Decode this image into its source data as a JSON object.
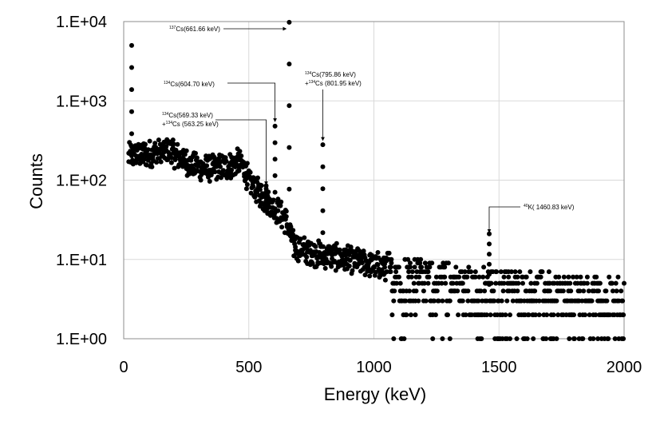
{
  "chart_data": {
    "type": "scatter",
    "title": "",
    "xlabel": "Energy (keV)",
    "ylabel": "Counts",
    "xlim": [
      0,
      2000
    ],
    "ylim": [
      1,
      10000
    ],
    "y_scale": "log",
    "grid": true,
    "x_ticks": [
      "0",
      "500",
      "1000",
      "1500",
      "2000"
    ],
    "y_ticks": [
      "1.E+00",
      "1.E+01",
      "1.E+02",
      "1.E+03",
      "1.E+04"
    ],
    "marker_color": "#000000",
    "annotations": [
      {
        "sup": "137",
        "text": "Cs(661.66 keV)",
        "x": 661.66,
        "y": 9500
      },
      {
        "sup": "134",
        "text": "Cs(604.70 keV)",
        "x": 604.7,
        "y": 500
      },
      {
        "sup": "134",
        "text": "Cs(569.33 keV)",
        "sup2": "134",
        "text2_prefix": "+",
        "text2": "Cs (563.25 keV)",
        "x": 569.33,
        "y": 80
      },
      {
        "sup": "134",
        "text": "Cs(795.86 keV)",
        "sup2": "134",
        "text2_prefix": "+",
        "text2": "Cs (801.95 keV)",
        "x": 795.86,
        "y": 290
      },
      {
        "sup": "40",
        "text": "K( 1460.83 keV)",
        "x": 1460.83,
        "y": 20
      }
    ],
    "peaks": [
      {
        "x": 32,
        "y": 5000
      },
      {
        "x": 661.66,
        "y": 9800
      },
      {
        "x": 604.7,
        "y": 480
      },
      {
        "x": 569.33,
        "y": 85
      },
      {
        "x": 795.86,
        "y": 280
      },
      {
        "x": 1460.83,
        "y": 21
      }
    ],
    "spectrum_profile": [
      [
        20,
        200
      ],
      [
        60,
        210
      ],
      [
        120,
        220
      ],
      [
        180,
        230
      ],
      [
        230,
        190
      ],
      [
        280,
        150
      ],
      [
        350,
        140
      ],
      [
        420,
        150
      ],
      [
        460,
        170
      ],
      [
        480,
        140
      ],
      [
        500,
        100
      ],
      [
        540,
        70
      ],
      [
        580,
        50
      ],
      [
        620,
        40
      ],
      [
        650,
        30
      ],
      [
        680,
        15
      ],
      [
        760,
        12
      ],
      [
        900,
        10
      ],
      [
        1050,
        8
      ],
      [
        1200,
        6
      ],
      [
        1400,
        5
      ],
      [
        1600,
        4.5
      ],
      [
        1800,
        4
      ],
      [
        2000,
        3.5
      ]
    ]
  }
}
